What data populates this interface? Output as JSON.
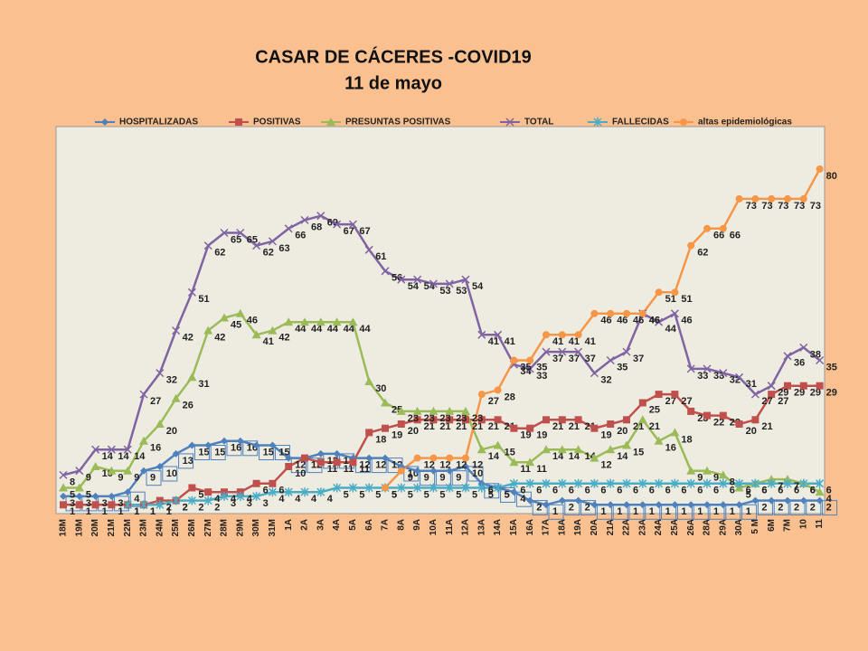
{
  "chart_data": {
    "type": "line",
    "title": "CASAR DE CÁCERES -COVID19",
    "subtitle": "11 de mayo",
    "categories": [
      "18M",
      "19M",
      "20M",
      "21M",
      "22M",
      "23M",
      "24M",
      "25M",
      "26M",
      "27M",
      "28M",
      "29M",
      "30M",
      "31M",
      "1A",
      "2A",
      "3A",
      "4A",
      "5A",
      "6A",
      "7A",
      "8A",
      "9A",
      "10A",
      "11A",
      "12A",
      "13A",
      "14A",
      "15A",
      "16A",
      "17A",
      "18A",
      "19A",
      "20A",
      "21A",
      "22A",
      "23A",
      "24A",
      "25A",
      "26A",
      "28A",
      "29A",
      "30A",
      "5 M",
      "6M",
      "7M",
      "10",
      "11"
    ],
    "ylim": [
      0,
      90
    ],
    "series": [
      {
        "name": "HOSPITALIZADAS",
        "color": "#4f81bd",
        "marker": "diamond",
        "values": [
          3,
          3,
          3,
          3,
          4,
          9,
          10,
          13,
          15,
          15,
          16,
          16,
          15,
          15,
          12,
          12,
          13,
          13,
          12,
          12,
          12,
          10,
          9,
          9,
          9,
          10,
          6,
          5,
          4,
          2,
          1,
          2,
          2,
          1,
          1,
          1,
          1,
          1,
          1,
          1,
          1,
          1,
          1,
          2,
          2,
          2,
          2,
          2
        ]
      },
      {
        "name": "POSITIVAS",
        "color": "#c0504d",
        "marker": "square",
        "values": [
          1,
          1,
          1,
          1,
          1,
          1,
          2,
          2,
          5,
          4,
          4,
          4,
          6,
          6,
          10,
          12,
          11,
          11,
          11,
          18,
          19,
          20,
          21,
          21,
          21,
          21,
          21,
          21,
          19,
          19,
          21,
          21,
          21,
          19,
          20,
          21,
          25,
          27,
          27,
          23,
          22,
          22,
          20,
          21,
          27,
          29,
          29,
          29
        ]
      },
      {
        "name": "PRESUNTAS POSITIVAS",
        "color": "#9bbb59",
        "marker": "triangle",
        "values": [
          5,
          5,
          10,
          9,
          9,
          16,
          20,
          26,
          31,
          42,
          45,
          46,
          41,
          42,
          44,
          44,
          44,
          44,
          44,
          30,
          25,
          23,
          23,
          23,
          23,
          23,
          14,
          15,
          11,
          11,
          14,
          14,
          14,
          12,
          14,
          15,
          21,
          16,
          18,
          9,
          9,
          8,
          5,
          6,
          7,
          7,
          6,
          4
        ]
      },
      {
        "name": "TOTAL",
        "color": "#8064a2",
        "marker": "x",
        "values": [
          8,
          9,
          14,
          14,
          14,
          27,
          32,
          42,
          51,
          62,
          65,
          65,
          62,
          63,
          66,
          68,
          69,
          67,
          67,
          61,
          56,
          54,
          54,
          53,
          53,
          54,
          41,
          41,
          34,
          33,
          37,
          37,
          37,
          32,
          35,
          37,
          46,
          44,
          46,
          33,
          33,
          32,
          31,
          27,
          29,
          36,
          38,
          35
        ]
      },
      {
        "name": "FALLECIDAS",
        "color": "#4bacc6",
        "marker": "star",
        "values": [
          null,
          null,
          null,
          null,
          1,
          1,
          1,
          2,
          2,
          2,
          3,
          3,
          3,
          4,
          4,
          4,
          4,
          5,
          5,
          5,
          5,
          5,
          5,
          5,
          5,
          5,
          5,
          5,
          6,
          6,
          6,
          6,
          6,
          6,
          6,
          6,
          6,
          6,
          6,
          6,
          6,
          6,
          6,
          6,
          6,
          6,
          6,
          6
        ]
      },
      {
        "name": "altas epidemiológicas",
        "color": "#f79646",
        "marker": "circle",
        "values": [
          null,
          null,
          null,
          null,
          null,
          null,
          null,
          null,
          null,
          null,
          null,
          null,
          null,
          null,
          null,
          null,
          null,
          null,
          null,
          null,
          5,
          9,
          12,
          12,
          12,
          12,
          27,
          28,
          35,
          35,
          41,
          41,
          41,
          46,
          46,
          46,
          46,
          51,
          51,
          62,
          66,
          66,
          73,
          73,
          73,
          73,
          73,
          80
        ]
      }
    ]
  }
}
